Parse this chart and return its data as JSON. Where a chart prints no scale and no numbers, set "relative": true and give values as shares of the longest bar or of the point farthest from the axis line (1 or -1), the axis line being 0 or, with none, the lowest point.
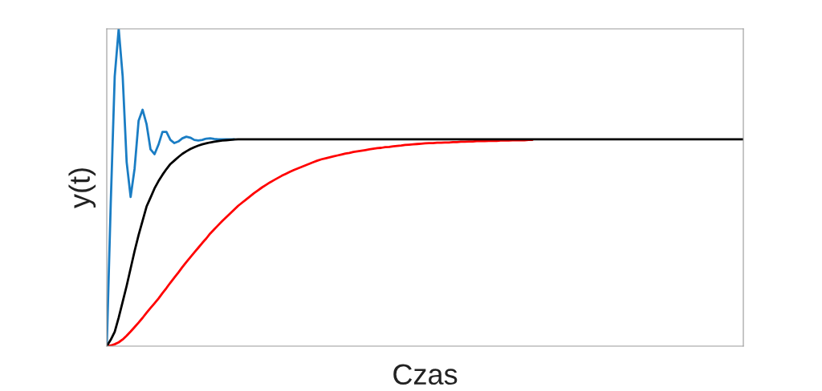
{
  "chart_data": {
    "type": "line",
    "xlabel": "Czas",
    "ylabel": "y(t)",
    "relative": true,
    "categories": [
      null,
      null,
      null,
      null,
      null,
      null,
      null,
      null,
      null,
      null,
      null,
      null,
      null,
      null,
      null,
      null,
      null,
      null,
      null,
      null,
      null,
      null,
      null,
      null,
      null,
      null,
      null,
      null,
      null,
      null,
      null,
      null,
      null,
      null,
      null,
      null,
      null,
      null,
      null,
      null,
      null,
      null,
      null,
      null,
      null,
      null,
      null,
      null,
      null,
      null,
      null,
      null,
      null,
      null,
      null,
      null,
      null,
      null,
      null,
      null,
      null,
      null,
      null,
      null,
      null,
      null,
      null,
      null,
      null,
      null,
      null,
      null,
      null,
      null,
      null,
      null,
      null,
      null,
      null,
      null,
      null,
      null,
      null,
      null,
      null,
      null,
      null,
      null,
      null,
      null,
      null,
      null,
      null,
      null,
      null,
      null,
      null,
      null,
      null,
      null,
      null,
      null,
      null,
      null,
      null,
      null,
      null,
      null,
      null,
      null,
      null,
      null,
      null,
      null,
      null,
      null,
      null,
      null,
      null,
      null,
      null,
      null,
      null,
      null,
      null,
      null,
      null,
      null,
      null,
      null,
      null,
      null,
      null,
      null,
      null,
      null,
      null,
      null,
      null,
      null,
      null,
      null,
      null,
      null,
      null,
      null,
      null,
      null,
      null,
      null,
      null,
      null,
      null,
      null,
      null,
      null,
      null,
      null,
      null,
      null,
      null
    ],
    "series": [
      {
        "color": "#ff0000",
        "values": [
          0,
          0.002,
          0.006,
          0.012,
          0.021,
          0.033,
          0.046,
          0.06,
          0.074,
          0.089,
          0.105,
          0.12,
          0.135,
          0.15,
          0.167,
          0.183,
          0.2,
          0.216,
          0.232,
          0.249,
          0.265,
          0.28,
          0.295,
          0.31,
          0.325,
          0.339,
          0.355,
          0.368,
          0.381,
          0.394,
          0.406,
          0.418,
          0.43,
          0.442,
          0.452,
          0.462,
          0.472,
          0.482,
          0.491,
          0.5,
          0.508,
          0.516,
          0.523,
          0.53,
          0.537,
          0.543,
          0.549,
          0.555,
          0.56,
          0.565,
          0.57,
          0.575,
          0.58,
          0.585,
          0.589,
          0.592,
          0.595,
          0.598,
          0.601,
          0.604,
          0.607,
          0.609,
          0.612,
          0.614,
          0.616,
          0.618,
          0.62,
          0.622,
          0.624,
          0.625,
          0.627,
          0.628,
          0.63,
          0.631,
          0.632,
          0.634,
          0.635,
          0.636,
          0.637,
          0.638,
          0.639,
          0.64,
          0.64,
          0.641,
          0.641,
          0.642,
          0.642,
          0.643,
          0.643,
          0.644,
          0.644,
          0.645,
          0.645,
          0.646,
          0.646,
          0.646,
          0.647,
          0.647,
          0.647,
          0.648,
          0.648,
          0.648,
          0.649,
          0.649,
          0.649,
          0.649,
          0.65,
          0.65,
          null,
          null,
          null,
          null,
          null,
          null,
          null,
          null,
          null,
          null,
          null,
          null,
          null,
          null,
          null,
          null,
          null,
          null,
          null,
          null,
          null,
          null,
          null,
          null,
          null,
          null,
          null,
          null,
          null,
          null,
          null,
          null,
          null,
          null,
          null,
          null,
          null,
          null,
          null,
          null,
          null,
          null,
          null,
          null,
          null,
          null,
          null,
          null,
          null,
          null,
          null,
          null,
          null
        ]
      },
      {
        "color": "#1a7dc4",
        "values": [
          0,
          0.45,
          0.85,
          1,
          0.85,
          0.58,
          0.47,
          0.56,
          0.71,
          0.745,
          0.7,
          0.62,
          0.605,
          0.635,
          0.675,
          0.675,
          0.65,
          0.64,
          0.645,
          0.655,
          0.66,
          0.657,
          0.65,
          0.648,
          0.65,
          0.654,
          0.655,
          0.653,
          0.652,
          0.652,
          0.652,
          0.652,
          0.652,
          null,
          null,
          null,
          null,
          null,
          null,
          null,
          null,
          null,
          null,
          null,
          null,
          null,
          null,
          null,
          null,
          null,
          null,
          null,
          null,
          null,
          null,
          null,
          null,
          null,
          null,
          null,
          null,
          null,
          null,
          null,
          null,
          null,
          null,
          null,
          null,
          null,
          null,
          null,
          null,
          null,
          null,
          null,
          null,
          null,
          null,
          null,
          null,
          null,
          null,
          null,
          null,
          null,
          null,
          null,
          null,
          null,
          null,
          null,
          null,
          null,
          null,
          null,
          null,
          null,
          null,
          null,
          null,
          null,
          null,
          null,
          null,
          null,
          null,
          null,
          null,
          null,
          null,
          null,
          null,
          null,
          null,
          null,
          null,
          null,
          null,
          null,
          null,
          null,
          null,
          null,
          null,
          null,
          null,
          null,
          null,
          null,
          null,
          null,
          null,
          null,
          null,
          null,
          null,
          null,
          null,
          null,
          null,
          null,
          null,
          null,
          null,
          null,
          null,
          null,
          null,
          null,
          null,
          null,
          null,
          null,
          null,
          null,
          null,
          null,
          null,
          null,
          null
        ]
      },
      {
        "color": "#000000",
        "values": [
          0,
          0.02,
          0.045,
          0.09,
          0.14,
          0.19,
          0.245,
          0.3,
          0.35,
          0.395,
          0.44,
          0.468,
          0.497,
          0.52,
          0.54,
          0.558,
          0.574,
          0.585,
          0.596,
          0.606,
          0.614,
          0.621,
          0.627,
          0.632,
          0.636,
          0.639,
          0.642,
          0.644,
          0.646,
          0.648,
          0.649,
          0.65,
          0.651,
          0.652,
          0.652,
          0.652,
          0.652,
          0.652,
          0.652,
          0.652,
          0.652,
          0.652,
          0.652,
          0.652,
          0.652,
          0.652,
          0.652,
          0.652,
          0.652,
          0.652,
          0.652,
          0.652,
          0.652,
          0.652,
          0.652,
          0.652,
          0.652,
          0.652,
          0.652,
          0.652,
          0.652,
          0.652,
          0.652,
          0.652,
          0.652,
          0.652,
          0.652,
          0.652,
          0.652,
          0.652,
          0.652,
          0.652,
          0.652,
          0.652,
          0.652,
          0.652,
          0.652,
          0.652,
          0.652,
          0.652,
          0.652,
          0.652,
          0.652,
          0.652,
          0.652,
          0.652,
          0.652,
          0.652,
          0.652,
          0.652,
          0.652,
          0.652,
          0.652,
          0.652,
          0.652,
          0.652,
          0.652,
          0.652,
          0.652,
          0.652,
          0.652,
          0.652,
          0.652,
          0.652,
          0.652,
          0.652,
          0.652,
          0.652,
          0.652,
          0.652,
          0.652,
          0.652,
          0.652,
          0.652,
          0.652,
          0.652,
          0.652,
          0.652,
          0.652,
          0.652,
          0.652,
          0.652,
          0.652,
          0.652,
          0.652,
          0.652,
          0.652,
          0.652,
          0.652,
          0.652,
          0.652,
          0.652,
          0.652,
          0.652,
          0.652,
          0.652,
          0.652,
          0.652,
          0.652,
          0.652,
          0.652,
          0.652,
          0.652,
          0.652,
          0.652,
          0.652,
          0.652,
          0.652,
          0.652,
          0.652,
          0.652,
          0.652,
          0.652,
          0.652,
          0.652,
          0.652,
          0.652,
          0.652,
          0.652,
          0.652,
          0.652
        ]
      }
    ]
  }
}
